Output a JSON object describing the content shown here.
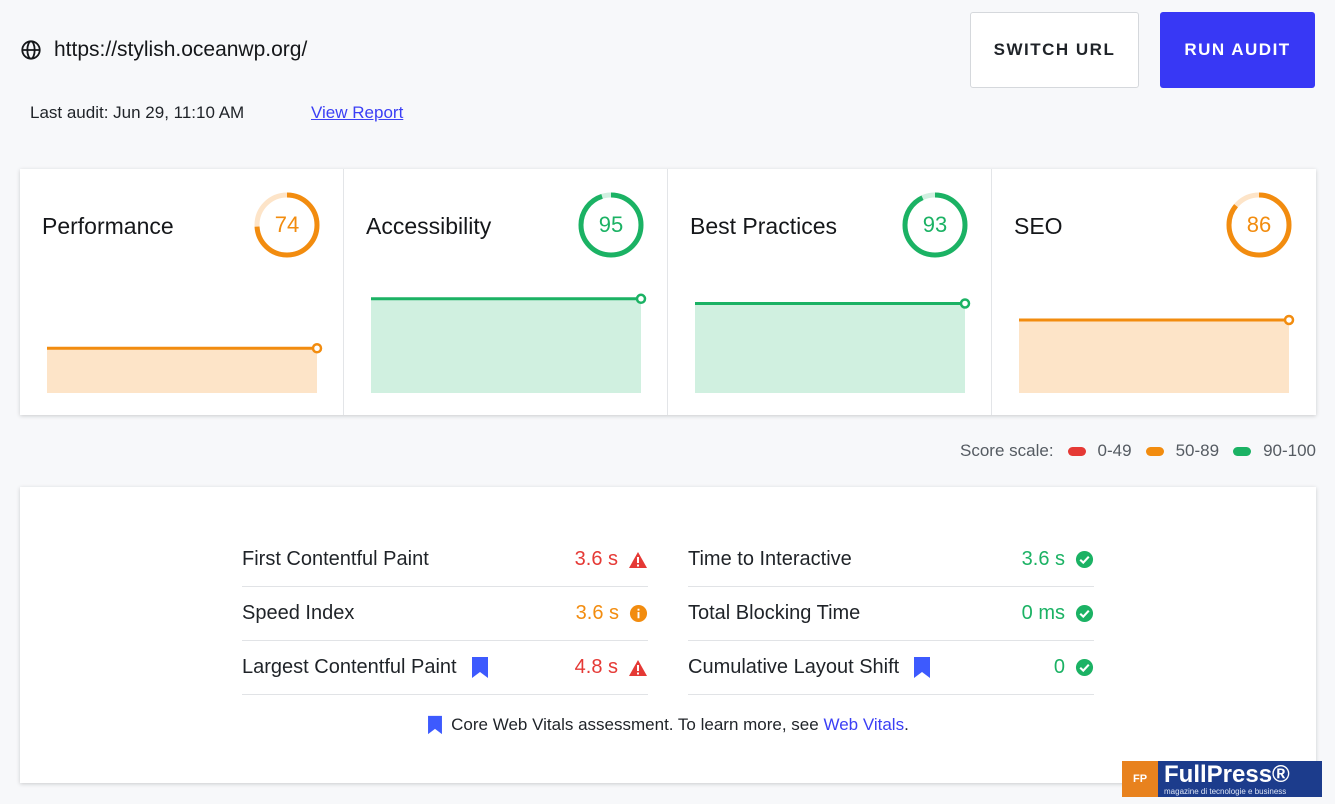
{
  "header": {
    "url": "https://stylish.oceanwp.org/",
    "last_audit": "Last audit: Jun 29, 11:10 AM",
    "view_report": "View Report",
    "switch_url": "SWITCH URL",
    "run_audit": "RUN AUDIT"
  },
  "colors": {
    "accent": "#3838f5",
    "orange": "#f28c0f",
    "orange_fill": "#fde4c8",
    "green": "#1bb264",
    "green_fill": "#d0f0e0",
    "red": "#e53935"
  },
  "cards": [
    {
      "title": "Performance",
      "score": 74,
      "status": "orange"
    },
    {
      "title": "Accessibility",
      "score": 95,
      "status": "green"
    },
    {
      "title": "Best Practices",
      "score": 93,
      "status": "green"
    },
    {
      "title": "SEO",
      "score": 86,
      "status": "orange"
    }
  ],
  "score_scale": {
    "label": "Score scale:",
    "ranges": [
      {
        "label": "0-49",
        "color": "#e53935"
      },
      {
        "label": "50-89",
        "color": "#f28c0f"
      },
      {
        "label": "90-100",
        "color": "#1bb264"
      }
    ]
  },
  "metrics": {
    "left": [
      {
        "name": "First Contentful Paint",
        "value": "3.6 s",
        "status": "red",
        "icon": "warning-icon",
        "core": false
      },
      {
        "name": "Speed Index",
        "value": "3.6 s",
        "status": "orange",
        "icon": "info-icon",
        "core": false
      },
      {
        "name": "Largest Contentful Paint",
        "value": "4.8 s",
        "status": "red",
        "icon": "warning-icon",
        "core": true
      }
    ],
    "right": [
      {
        "name": "Time to Interactive",
        "value": "3.6 s",
        "status": "green",
        "icon": "check-icon",
        "core": false
      },
      {
        "name": "Total Blocking Time",
        "value": "0 ms",
        "status": "green",
        "icon": "check-icon",
        "core": false
      },
      {
        "name": "Cumulative Layout Shift",
        "value": "0",
        "status": "green",
        "icon": "check-icon",
        "core": true
      }
    ],
    "footnote_text": "Core Web Vitals assessment. To learn more, see",
    "footnote_link": "Web Vitals",
    "footnote_end": "."
  },
  "watermark": {
    "logo": "FP",
    "name": "FullPress®",
    "tagline": "magazine di tecnologie e business"
  }
}
